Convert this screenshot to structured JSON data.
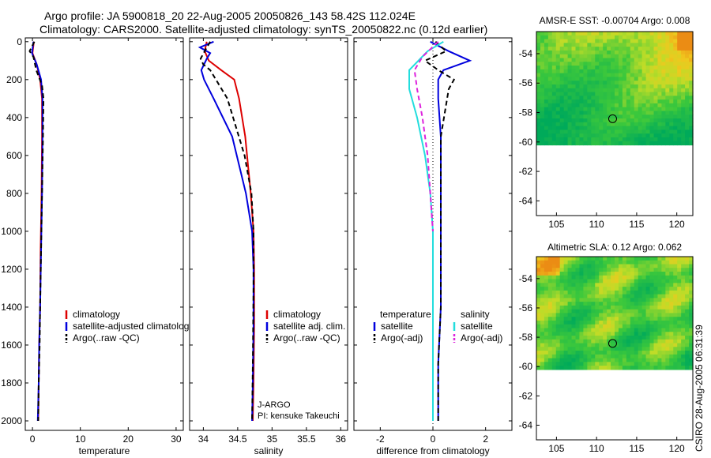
{
  "title_line1": "Argo profile: JA 5900818_20 22-Aug-2005 20050826_143 58.42S 112.024E",
  "title_line2": "Climatology: CARS2000. Satellite-adjusted climatology: synTS_20050822.nc (0.12d earlier)",
  "footer": "CSIRO 28-Aug-2005 06:31:39",
  "colors": {
    "climatology": "#dd0000",
    "satellite": "#0000dd",
    "argo": "#000000",
    "salt_sat": "#22dddd",
    "salt_argo": "#dd22dd"
  },
  "chart_data": [
    {
      "type": "line",
      "id": "temperature",
      "xlabel": "temperature",
      "xlim": [
        -1.5,
        31.5
      ],
      "ylim": [
        2050,
        -20
      ],
      "xticks": [
        0,
        10,
        20,
        30
      ],
      "yticks": [
        0,
        200,
        400,
        600,
        800,
        1000,
        1200,
        1400,
        1600,
        1800,
        2000
      ],
      "legend": [
        "climatology",
        "satellite-adjusted climatology",
        "Argo(..raw -QC)"
      ],
      "series": [
        {
          "name": "climatology",
          "color": "#dd0000",
          "dash": false,
          "x": [
            0.3,
            0.0,
            0.9,
            1.6,
            2.0,
            2.0,
            1.9,
            1.7,
            1.6,
            1.4,
            1.3,
            1.2
          ],
          "y": [
            0,
            60,
            120,
            200,
            300,
            500,
            800,
            1100,
            1400,
            1600,
            1800,
            2000
          ]
        },
        {
          "name": "satellite-adjusted climatology",
          "color": "#0000dd",
          "dash": false,
          "x": [
            0.2,
            -0.1,
            0.9,
            1.8,
            2.1,
            2.1,
            2.0,
            1.8,
            1.6,
            1.4,
            1.3,
            1.1
          ],
          "y": [
            0,
            60,
            120,
            200,
            300,
            500,
            800,
            1100,
            1400,
            1600,
            1800,
            2000
          ]
        },
        {
          "name": "Argo(..raw -QC)",
          "color": "#000000",
          "dash": true,
          "x": [
            0.4,
            -0.6,
            0.2,
            0.8,
            2.0,
            2.3,
            2.2,
            2.0,
            1.8,
            1.6,
            1.5,
            1.3,
            1.2
          ],
          "y": [
            0,
            50,
            80,
            150,
            230,
            300,
            500,
            800,
            1100,
            1400,
            1600,
            1800,
            2000
          ]
        }
      ]
    },
    {
      "type": "line",
      "id": "salinity",
      "xlabel": "salinity",
      "xlim": [
        33.8,
        36.1
      ],
      "ylim": [
        2050,
        -20
      ],
      "xticks": [
        34,
        34.5,
        35,
        35.5,
        36
      ],
      "xticklabels": [
        "34",
        "34.5",
        "35",
        "35.5",
        "36"
      ],
      "legend": [
        "climatology",
        "satellite adj. clim.",
        "Argo(..raw -QC)"
      ],
      "annotation": [
        "J-ARGO",
        "PI: kensuke Takeuchi"
      ],
      "series": [
        {
          "name": "climatology",
          "color": "#dd0000",
          "dash": false,
          "x": [
            34.05,
            34.02,
            34.08,
            34.26,
            34.45,
            34.52,
            34.61,
            34.69,
            34.73,
            34.74,
            34.74,
            34.73,
            34.72
          ],
          "y": [
            0,
            50,
            100,
            150,
            200,
            300,
            500,
            800,
            1000,
            1200,
            1500,
            1800,
            2000
          ]
        },
        {
          "name": "satellite adj. clim.",
          "color": "#0000dd",
          "dash": false,
          "x": [
            34.15,
            33.95,
            34.1,
            34.05,
            33.97,
            34.01,
            34.15,
            34.42,
            34.62,
            34.71,
            34.73,
            34.73,
            34.72,
            34.71
          ],
          "y": [
            0,
            30,
            60,
            90,
            150,
            200,
            300,
            500,
            800,
            1000,
            1200,
            1500,
            1800,
            2000
          ]
        },
        {
          "name": "Argo(..raw -QC)",
          "color": "#000000",
          "dash": true,
          "x": [
            34.1,
            34.02,
            33.96,
            34.0,
            34.1,
            34.35,
            34.6,
            34.7,
            34.73,
            34.73,
            34.72,
            34.71
          ],
          "y": [
            0,
            50,
            90,
            120,
            150,
            300,
            600,
            800,
            1000,
            1300,
            1700,
            2000
          ]
        }
      ]
    },
    {
      "type": "line",
      "id": "difference",
      "xlabel": "difference from climatology",
      "xlim": [
        -3.0,
        3.0
      ],
      "ylim": [
        2050,
        -20
      ],
      "xticks": [
        -2,
        0,
        2
      ],
      "legend_left": [
        "temperature",
        "satellite",
        "Argo(-adj)"
      ],
      "legend_right": [
        "salinity",
        "satellite",
        "Argo(-adj)"
      ],
      "series": [
        {
          "name": "temperature satellite",
          "color": "#0000dd",
          "dash": false,
          "x": [
            -0.1,
            0.6,
            1.4,
            0.4,
            0.2,
            0.2,
            0.3,
            0.3,
            0.3,
            0.3,
            0.2,
            0.2
          ],
          "y": [
            0,
            50,
            100,
            150,
            200,
            300,
            500,
            800,
            1100,
            1400,
            1700,
            2000
          ]
        },
        {
          "name": "temperature Argo(-adj)",
          "color": "#000000",
          "dash": true,
          "x": [
            0.1,
            0.5,
            -0.3,
            0.2,
            0.8,
            0.6,
            0.3,
            0.3,
            0.3,
            0.3,
            0.2,
            0.2
          ],
          "y": [
            0,
            50,
            100,
            150,
            200,
            250,
            500,
            800,
            1100,
            1400,
            1700,
            2000
          ]
        },
        {
          "name": "salinity satellite",
          "color": "#22dddd",
          "dash": false,
          "x": [
            0.4,
            -0.2,
            -0.9,
            -0.9,
            -0.6,
            -0.3,
            -0.1,
            0.0,
            0.0,
            0.0
          ],
          "y": [
            0,
            50,
            150,
            250,
            400,
            600,
            800,
            1000,
            1500,
            2000
          ]
        },
        {
          "name": "salinity Argo(-adj)",
          "color": "#dd22dd",
          "dash": true,
          "x": [
            0.2,
            -0.4,
            -0.7,
            -0.6,
            -0.4,
            -0.2,
            -0.1,
            0.0
          ],
          "y": [
            0,
            80,
            150,
            250,
            400,
            600,
            800,
            1000
          ]
        }
      ]
    },
    {
      "type": "heatmap",
      "id": "sst",
      "title": "AMSR-E SST: -0.00704 Argo: 0.008",
      "xlim": [
        102.5,
        122
      ],
      "ylim": [
        -65,
        -52.5
      ],
      "xticks": [
        105,
        110,
        115,
        120
      ],
      "yticks": [
        -54,
        -56,
        -58,
        -60,
        -62,
        -64
      ],
      "data_extent_lat": [
        -60.2,
        -52.5
      ],
      "marker": {
        "lon": 112.0,
        "lat": -58.42
      }
    },
    {
      "type": "heatmap",
      "id": "sla",
      "title": "Altimetric SLA: 0.12 Argo: 0.062",
      "xlim": [
        102.5,
        122
      ],
      "ylim": [
        -65,
        -52.5
      ],
      "xticks": [
        105,
        110,
        115,
        120
      ],
      "yticks": [
        -54,
        -56,
        -58,
        -60,
        -62,
        -64
      ],
      "data_extent_lat": [
        -60.2,
        -52.5
      ],
      "marker": {
        "lon": 112.0,
        "lat": -58.42
      }
    }
  ]
}
